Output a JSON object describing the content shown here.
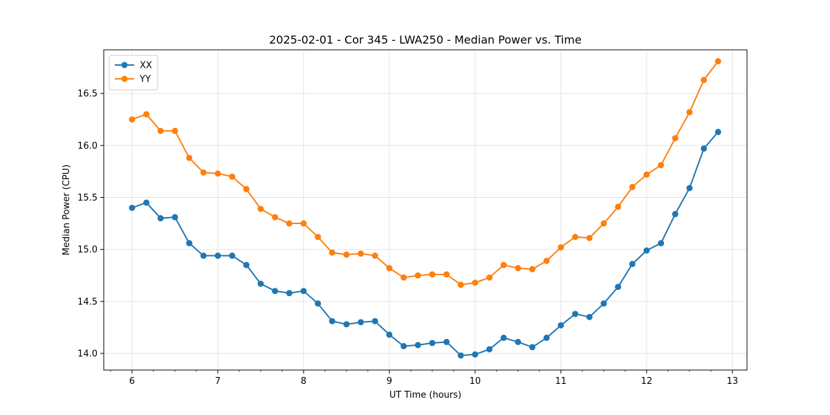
{
  "chart_data": {
    "type": "line",
    "title": "2025-02-01 - Cor 345 - LWA250 - Median Power vs. Time",
    "xlabel": "UT Time (hours)",
    "ylabel": "Median Power (CPU)",
    "xlim": [
      5.67,
      13.17
    ],
    "ylim": [
      13.84,
      16.92
    ],
    "xticks": [
      6,
      7,
      8,
      9,
      10,
      11,
      12,
      13
    ],
    "xtick_labels": [
      "6",
      "7",
      "8",
      "9",
      "10",
      "11",
      "12",
      "13"
    ],
    "yticks": [
      14.0,
      14.5,
      15.0,
      15.5,
      16.0,
      16.5
    ],
    "ytick_labels": [
      "14.0",
      "14.5",
      "15.0",
      "15.5",
      "16.0",
      "16.5"
    ],
    "grid": true,
    "legend": "top-left",
    "x": [
      6.0,
      6.167,
      6.333,
      6.5,
      6.667,
      6.833,
      7.0,
      7.167,
      7.333,
      7.5,
      7.667,
      7.833,
      8.0,
      8.167,
      8.333,
      8.5,
      8.667,
      8.833,
      9.0,
      9.167,
      9.333,
      9.5,
      9.667,
      9.833,
      10.0,
      10.167,
      10.333,
      10.5,
      10.667,
      10.833,
      11.0,
      11.167,
      11.333,
      11.5,
      11.667,
      11.833,
      12.0,
      12.167,
      12.333,
      12.5,
      12.667,
      12.833
    ],
    "series": [
      {
        "name": "XX",
        "color": "#1f77b4",
        "values": [
          15.4,
          15.45,
          15.3,
          15.31,
          15.06,
          14.94,
          14.94,
          14.94,
          14.85,
          14.67,
          14.6,
          14.58,
          14.6,
          14.48,
          14.31,
          14.28,
          14.3,
          14.31,
          14.18,
          14.07,
          14.08,
          14.1,
          14.11,
          13.98,
          13.99,
          14.04,
          14.15,
          14.11,
          14.06,
          14.15,
          14.27,
          14.38,
          14.35,
          14.48,
          14.64,
          14.86,
          14.99,
          15.06,
          15.34,
          15.59,
          15.97,
          16.13
        ]
      },
      {
        "name": "YY",
        "color": "#ff7f0e",
        "values": [
          16.25,
          16.3,
          16.14,
          16.14,
          15.88,
          15.74,
          15.73,
          15.7,
          15.58,
          15.39,
          15.31,
          15.25,
          15.25,
          15.12,
          14.97,
          14.95,
          14.96,
          14.94,
          14.82,
          14.73,
          14.75,
          14.76,
          14.76,
          14.66,
          14.68,
          14.73,
          14.85,
          14.82,
          14.81,
          14.89,
          15.02,
          15.12,
          15.11,
          15.25,
          15.41,
          15.6,
          15.72,
          15.81,
          16.07,
          16.32,
          16.63,
          16.81
        ]
      }
    ]
  }
}
